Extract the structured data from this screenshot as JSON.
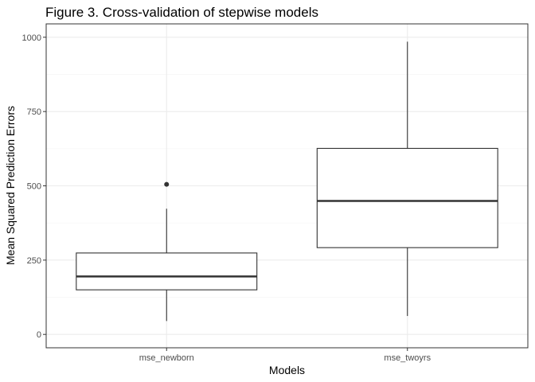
{
  "chart_data": {
    "type": "boxplot",
    "title": "Figure 3. Cross-validation of stepwise models",
    "xlabel": "Models",
    "ylabel": "Mean Squared Prediction Errors",
    "categories": [
      "mse_newborn",
      "mse_twoyrs"
    ],
    "ylim": [
      -45,
      1045
    ],
    "y_ticks": [
      0,
      250,
      500,
      750,
      1000
    ],
    "grid": true,
    "boxes": [
      {
        "category": "mse_newborn",
        "whisker_low": 45,
        "q1": 150,
        "median": 195,
        "q3": 274,
        "whisker_high": 423,
        "outliers": [
          505
        ]
      },
      {
        "category": "mse_twoyrs",
        "whisker_low": 62,
        "q1": 292,
        "median": 449,
        "q3": 626,
        "whisker_high": 985,
        "outliers": []
      }
    ]
  },
  "style": {
    "grid_major": "#ebebeb",
    "grid_minor": "#f5f5f5",
    "panel_border": "#333333",
    "box_stroke": "#333333",
    "box_fill": "#ffffff"
  }
}
